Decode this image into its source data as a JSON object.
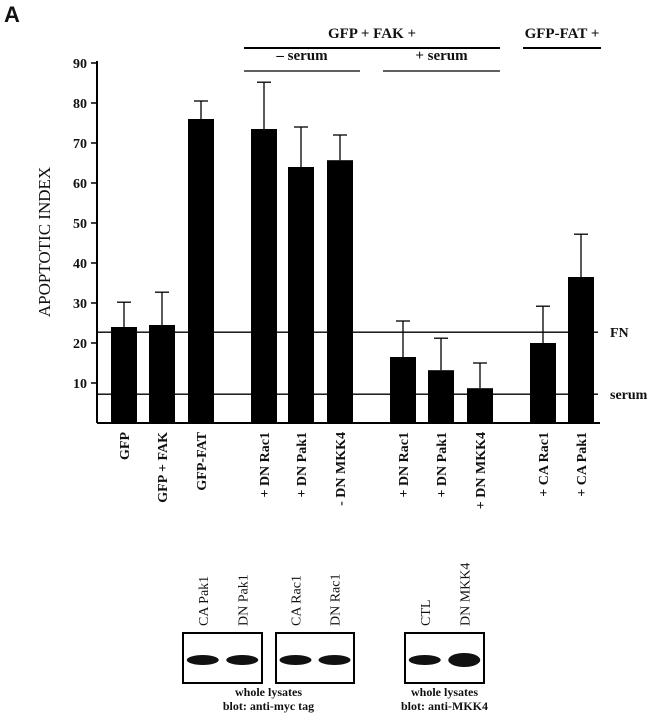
{
  "panel_label": "A",
  "chart_data": {
    "type": "bar",
    "y_label": "APOPTOTIC INDEX",
    "categories": [
      "GFP",
      "GFP + FAK",
      "GFP-FAT",
      "+ DN Rac1",
      "+ DN Pak1",
      "- DN MKK4",
      "+ DN Rac1",
      "+ DN Pak1",
      "+ DN MKK4",
      "+ CA Rac1",
      "+ CA Pak1"
    ],
    "values": [
      24,
      24.5,
      76,
      73.5,
      64,
      65.7,
      16.5,
      13.2,
      8.7,
      20,
      36.5
    ],
    "errors": [
      6.2,
      8.2,
      4.5,
      11.7,
      10,
      6.3,
      9,
      8,
      6.3,
      9.2,
      10.7
    ],
    "color": "#000000",
    "ylim": [
      0,
      90
    ],
    "yticks": [
      10,
      20,
      30,
      40,
      50,
      60,
      70,
      80,
      90
    ],
    "reference_lines": [
      {
        "label": "FN",
        "value": 22.7
      },
      {
        "label": "serum",
        "value": 7.2
      }
    ],
    "group_labels": [
      "GFP + FAK +",
      "– serum",
      "+ serum",
      "GFP-FAT +"
    ]
  },
  "blots": [
    {
      "panels": [
        [
          "CA Pak1",
          "DN Pak1"
        ],
        [
          "CA Rac1",
          "DN Rac1"
        ]
      ],
      "caption": [
        "whole lysates",
        "blot: anti-myc tag"
      ]
    },
    {
      "panels": [
        [
          "CTL",
          "DN MKK4"
        ]
      ],
      "caption": [
        "whole lysates",
        "blot: anti-MKK4"
      ]
    }
  ]
}
